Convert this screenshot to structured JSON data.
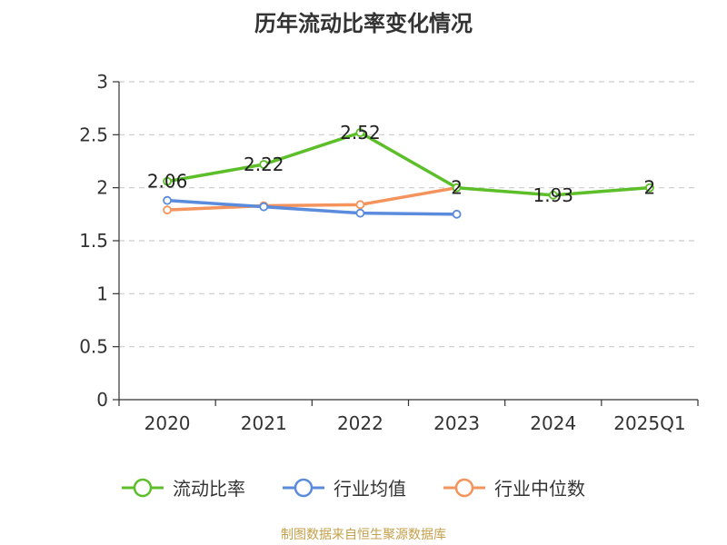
{
  "chart_data": {
    "type": "line",
    "title": "历年流动比率变化情况",
    "categories": [
      "2020",
      "2021",
      "2022",
      "2023",
      "2024",
      "2025Q1"
    ],
    "ylim": [
      0,
      3
    ],
    "yticks": [
      "0",
      "0.5",
      "1",
      "1.5",
      "2",
      "2.5",
      "3"
    ],
    "grid": true,
    "legend": "bottom",
    "series": [
      {
        "name": "流动比率",
        "color": "#5cbf2a",
        "values": [
          2.06,
          2.22,
          2.52,
          2.0,
          1.93,
          2.0
        ],
        "labels": [
          "2.06",
          "2.22",
          "2.52",
          "2",
          "1.93",
          "2"
        ]
      },
      {
        "name": "行业均值",
        "color": "#5b8bdc",
        "values": [
          1.88,
          1.82,
          1.76,
          1.75,
          null,
          null
        ]
      },
      {
        "name": "行业中位数",
        "color": "#f4935b",
        "values": [
          1.79,
          1.83,
          1.84,
          2.0,
          null,
          null
        ]
      }
    ]
  },
  "source": "制图数据来自恒生聚源数据库"
}
